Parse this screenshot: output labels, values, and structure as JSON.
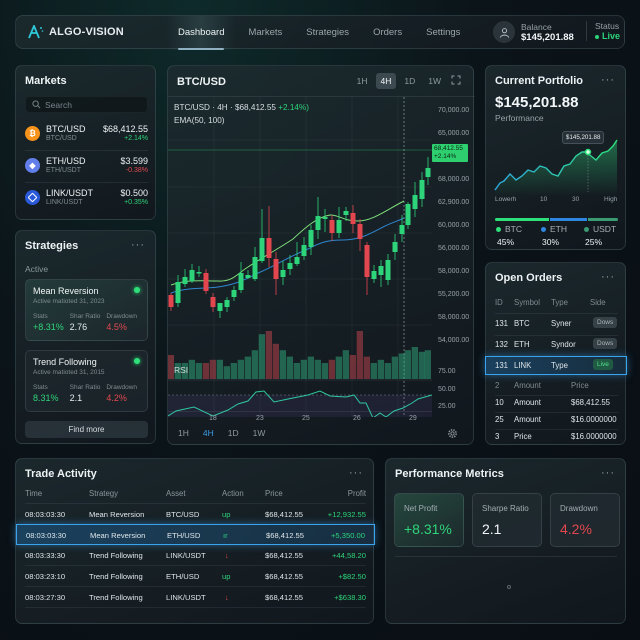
{
  "header": {
    "brand": "ALGO-VISION",
    "nav": [
      {
        "label": "Dashboard",
        "active": true
      },
      {
        "label": "Markets"
      },
      {
        "label": "Strategies"
      },
      {
        "label": "Orders"
      },
      {
        "label": "Settings"
      }
    ],
    "balance_label": "Balance",
    "balance_value": "$145,201.88",
    "status_label": "Status",
    "status_value": "Live"
  },
  "markets": {
    "title": "Markets",
    "search_placeholder": "Search",
    "items": [
      {
        "pair": "BTC/USD",
        "sub": "BTC/USD",
        "price": "$68,412.55",
        "change": "+2.14%",
        "dir": "up",
        "icon": "bitcoin-icon",
        "color": "#f7931a",
        "glyph": "₿"
      },
      {
        "pair": "ETH/USD",
        "sub": "ETH/USDT",
        "price": "$3.599",
        "change": "-0.38%",
        "dir": "down",
        "icon": "ethereum-icon",
        "color": "#627eea",
        "glyph": "◆"
      },
      {
        "pair": "LINK/USDT",
        "sub": "LINK/USDT",
        "price": "$0.500",
        "change": "+0.35%",
        "dir": "up",
        "icon": "chainlink-icon",
        "color": "#2a5ada",
        "glyph": "⬡"
      }
    ]
  },
  "strategies": {
    "title": "Strategies",
    "section": "Active",
    "find_more": "Find more",
    "items": [
      {
        "name": "Mean Reversion",
        "sub": "Active matioted 31, 2023",
        "stats": [
          {
            "k": "Stats",
            "v": "+8.31%",
            "c": "green"
          },
          {
            "k": "Shar Ratio",
            "v": "2.76",
            "c": "white"
          },
          {
            "k": "Drawdown",
            "v": "4.5%",
            "c": "red"
          }
        ]
      },
      {
        "name": "Trend Following",
        "sub": "Active matioted 31, 2015",
        "stats": [
          {
            "k": "Stats",
            "v": "8.31%",
            "c": "green"
          },
          {
            "k": "Shar Ratio",
            "v": "2.1",
            "c": "white"
          },
          {
            "k": "Drawdown",
            "v": "4.2%",
            "c": "red"
          }
        ]
      }
    ]
  },
  "chart": {
    "title": "BTC/USD",
    "timeframes": [
      "1H",
      "4H",
      "1D",
      "1W"
    ],
    "active_tf": "4H",
    "info_line": "BTC/USD · 4H · $68,412.55",
    "info_change": "+2.14%)",
    "ema_label": "EMA(50, 100)",
    "price_tag": "68,412.55",
    "price_tag_change": "+2.14%",
    "y_labels": [
      "70,000.00",
      "65,000.00",
      "68,000.00",
      "62,900.00",
      "60,000.00",
      "56,000.00",
      "58,000.00",
      "55,200.00",
      "58,000.00",
      "54,000.00"
    ],
    "rsi_label": "RSI",
    "rsi_levels": [
      "75.00",
      "50.00",
      "25.00"
    ],
    "x_labels": [
      "18",
      "23",
      "25",
      "26",
      "29"
    ],
    "bottom_timeframes": [
      "1H",
      "4H",
      "1D",
      "1W"
    ]
  },
  "portfolio": {
    "title": "Current Portfolio",
    "value": "$145,201.88",
    "perf_label": "Performance",
    "tooltip": "$145,201.88",
    "x_labels": [
      "Lowerh",
      "10",
      "30",
      "High"
    ],
    "allocation": [
      {
        "asset": "BTC",
        "pct": "45%",
        "color": "#2ee07a"
      },
      {
        "asset": "ETH",
        "pct": "30%",
        "color": "#2f86e0"
      },
      {
        "asset": "USDT",
        "pct": "25%",
        "color": "#3a9a72"
      }
    ]
  },
  "orders": {
    "title": "Open Orders",
    "headers": [
      "ID",
      "Symbol",
      "Type",
      "Side"
    ],
    "rows": [
      {
        "id": "131",
        "symbol": "BTC",
        "type": "Syner",
        "side": "Dows"
      },
      {
        "id": "132",
        "symbol": "ETH",
        "type": "Syndor",
        "side": "Dows"
      },
      {
        "id": "131",
        "symbol": "LINK",
        "type": "Type",
        "side": "Live"
      }
    ],
    "sub_headers": [
      "2",
      "Amount",
      "Price"
    ],
    "sub_rows": [
      {
        "a": "10",
        "b": "Amount",
        "c": "$68,412.55"
      },
      {
        "a": "25",
        "b": "Amount",
        "c": "$16.0000000"
      },
      {
        "a": "3",
        "b": "Price",
        "c": "$16.0000000"
      }
    ]
  },
  "trades": {
    "title": "Trade Activity",
    "headers": [
      "Time",
      "Strategy",
      "Asset",
      "Action",
      "Price",
      "Profit"
    ],
    "rows": [
      {
        "time": "08:03:03:30",
        "strategy": "Mean Reversion",
        "asset": "BTC/USD",
        "action": "up",
        "price": "$68,412.55",
        "profit": "+12,932.55"
      },
      {
        "time": "08:03:03:30",
        "strategy": "Mean Reversion",
        "asset": "ETH/USD",
        "action": "ır",
        "price": "$68,412.55",
        "profit": "+5,350.00"
      },
      {
        "time": "08:03:33:30",
        "strategy": "Trend Following",
        "asset": "LINK/USDT",
        "action": "↓",
        "price": "$68,412.55",
        "profit": "+44,58.20"
      },
      {
        "time": "08:03:23:10",
        "strategy": "Trend Following",
        "asset": "ETH/USD",
        "action": "up",
        "price": "$68,412.55",
        "profit": "+$82.50"
      },
      {
        "time": "08:03:27:30",
        "strategy": "Trend Following",
        "asset": "LINK/USDT",
        "action": "↓",
        "price": "$68,412.55",
        "profit": "+$638.30"
      }
    ]
  },
  "metrics": {
    "title": "Performance Metrics",
    "cards": [
      {
        "label": "Net Profit",
        "value": "+8.31%"
      },
      {
        "label": "Sharpe Ratio",
        "value": "2.1"
      },
      {
        "label": "Drawdown",
        "value": "4.2%"
      }
    ]
  },
  "colors": {
    "up": "#2ed47a",
    "down": "#e2474f",
    "accent": "#3aa3ee",
    "brand": "#2ec8d8"
  }
}
